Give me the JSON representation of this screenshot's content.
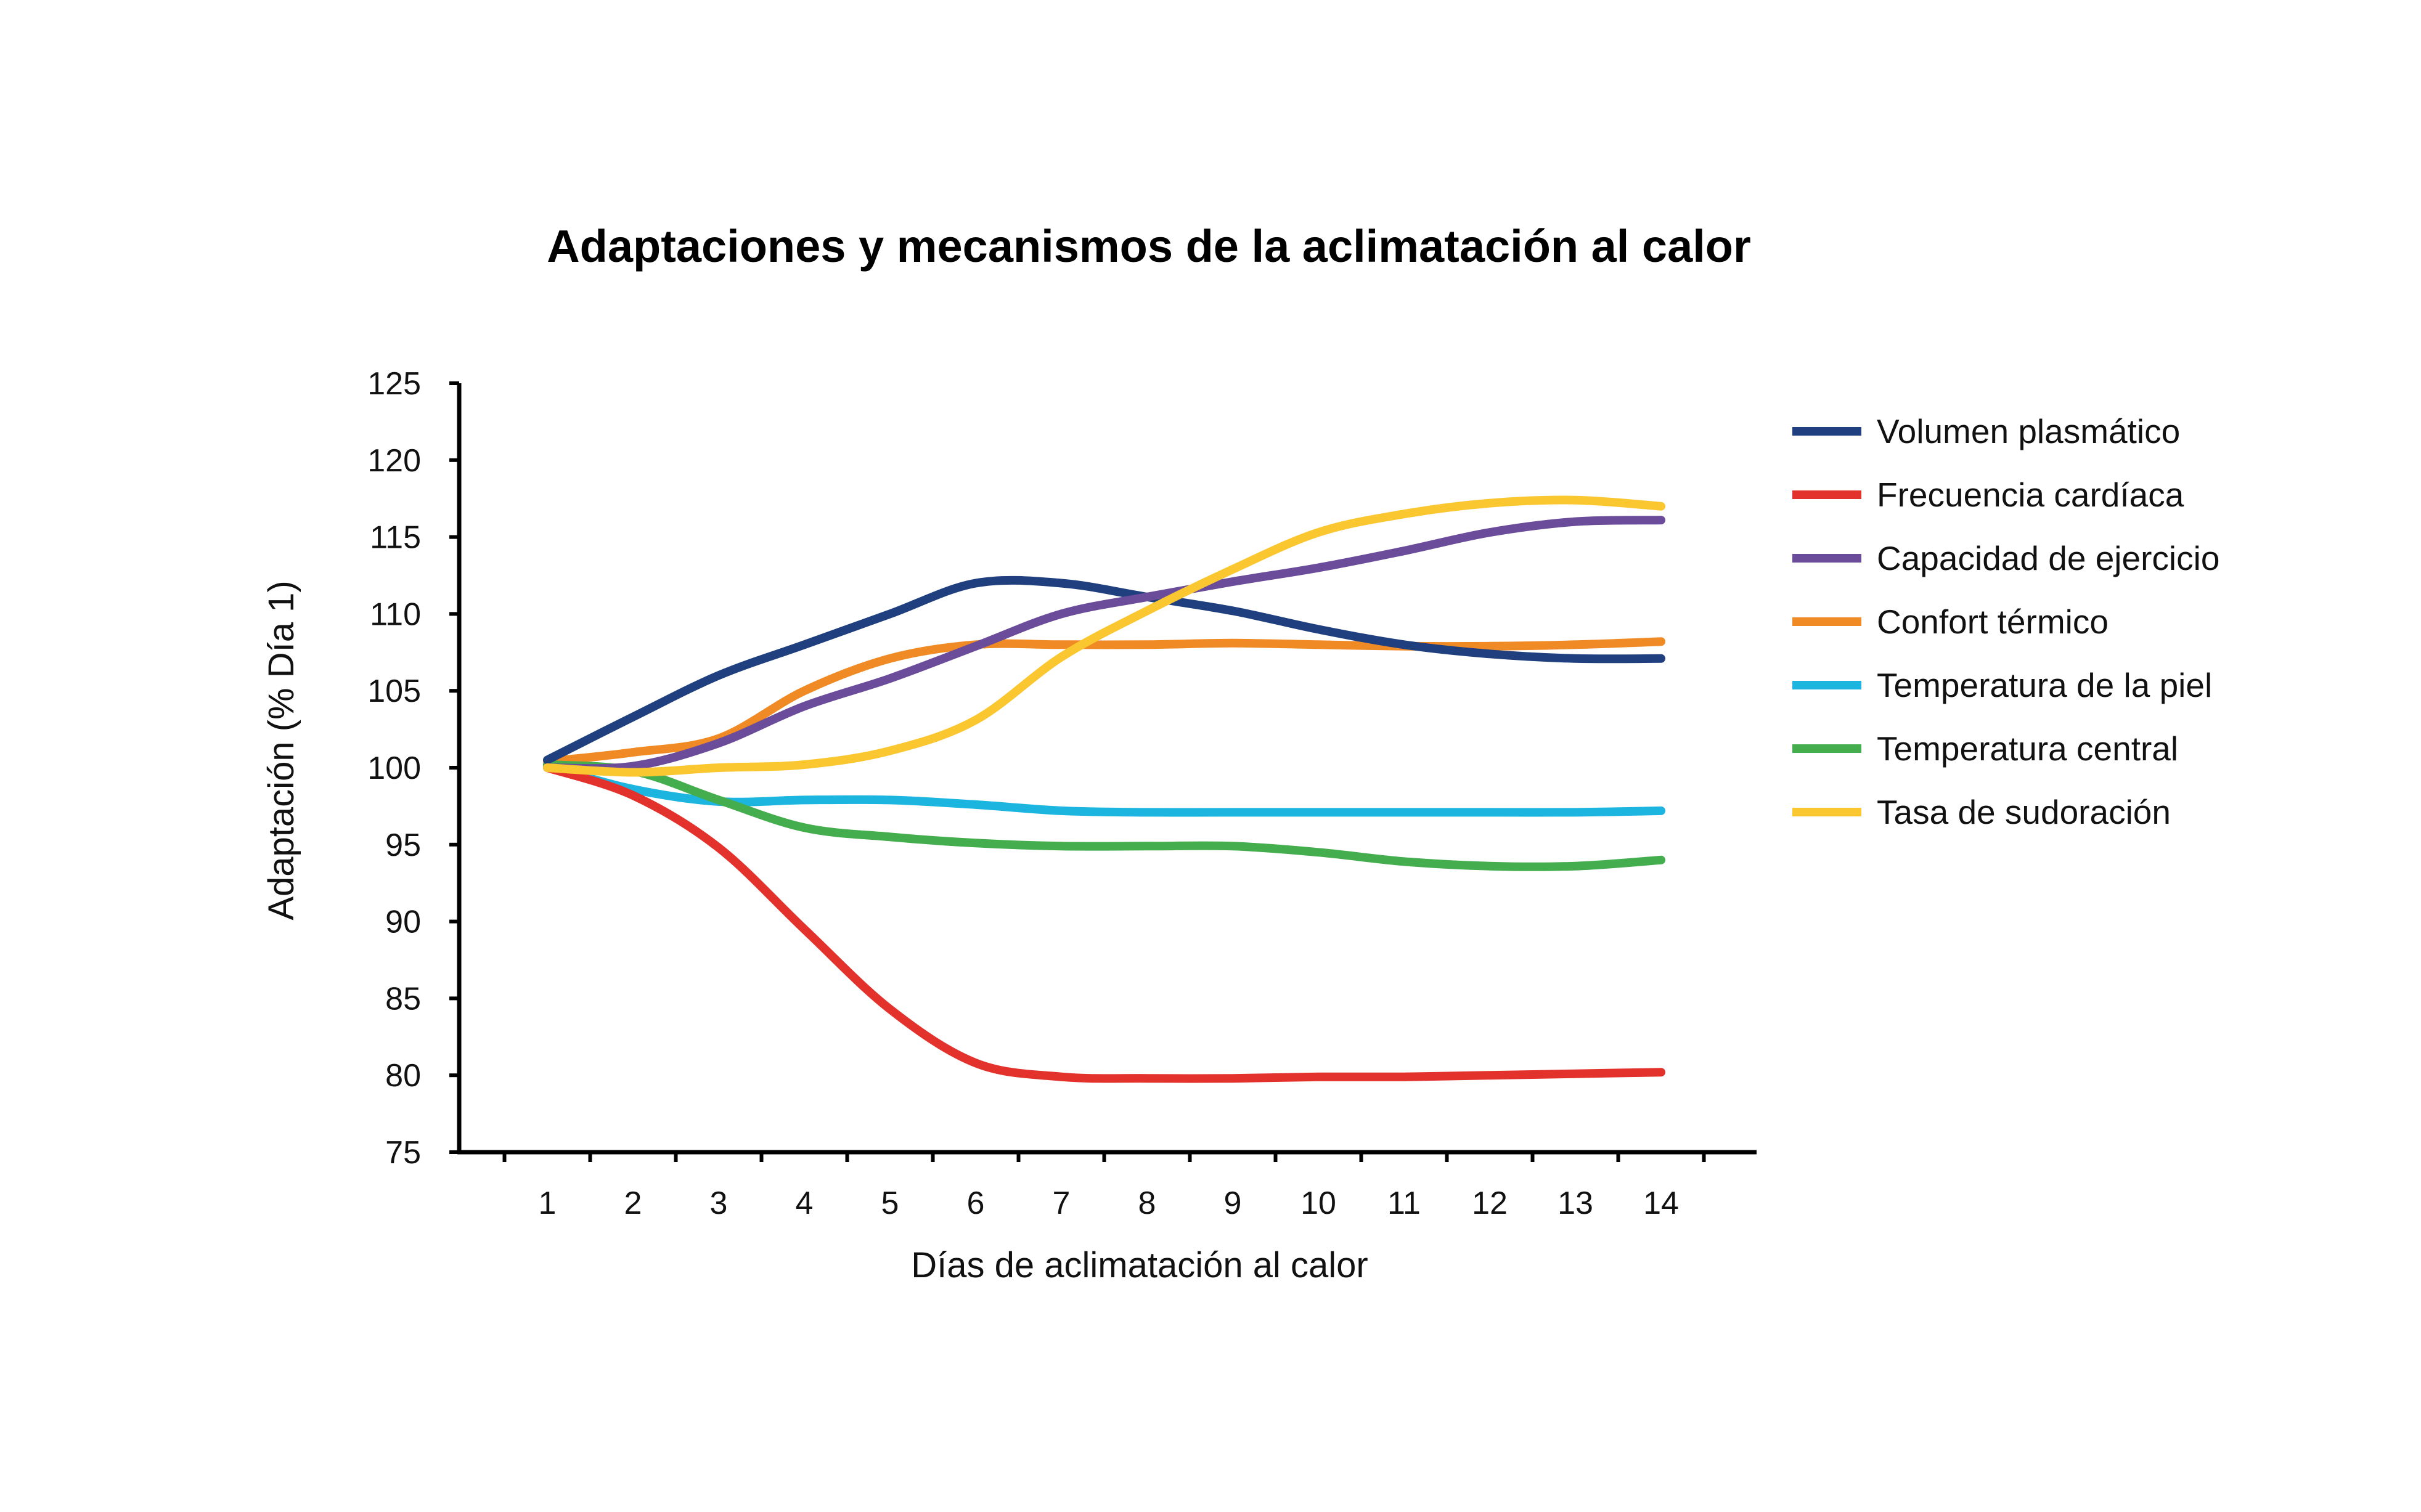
{
  "chart_data": {
    "type": "line",
    "title": "Adaptaciones y mecanismos de la aclimatación al calor",
    "xlabel": "Días de aclimatación al calor",
    "ylabel": "Adaptación (% Día 1)",
    "x": [
      1,
      2,
      3,
      4,
      5,
      6,
      7,
      8,
      9,
      10,
      11,
      12,
      13,
      14
    ],
    "xlim": [
      0,
      15
    ],
    "ylim": [
      75,
      125
    ],
    "yticks": [
      75,
      80,
      85,
      90,
      95,
      100,
      105,
      110,
      115,
      120,
      125
    ],
    "grid": false,
    "legend_position": "right",
    "series": [
      {
        "name": "Volumen plasmático",
        "color": "#1f3f7f",
        "values": [
          100.5,
          103.3,
          106.0,
          108.0,
          110.0,
          112.0,
          112.0,
          111.1,
          110.2,
          109.0,
          108.0,
          107.4,
          107.1,
          107.1
        ]
      },
      {
        "name": "Frecuencia cardíaca",
        "color": "#e3312c",
        "values": [
          100.0,
          98.2,
          94.8,
          89.5,
          84.3,
          80.8,
          79.9,
          79.8,
          79.8,
          79.9,
          79.9,
          80.0,
          80.1,
          80.2
        ]
      },
      {
        "name": "Capacidad de ejercicio",
        "color": "#6b4c9a",
        "values": [
          100.0,
          100.1,
          101.6,
          104.0,
          105.8,
          107.9,
          110.0,
          111.1,
          112.1,
          113.0,
          114.1,
          115.3,
          116.0,
          116.1
        ]
      },
      {
        "name": "Confort térmico",
        "color": "#f08a24",
        "values": [
          100.4,
          101.0,
          101.9,
          105.0,
          107.1,
          108.0,
          108.0,
          108.0,
          108.1,
          108.0,
          107.9,
          107.9,
          108.0,
          108.2
        ]
      },
      {
        "name": "Temperatura de la piel",
        "color": "#1bb5e0",
        "values": [
          100.1,
          98.6,
          97.8,
          97.9,
          97.9,
          97.6,
          97.2,
          97.1,
          97.1,
          97.1,
          97.1,
          97.1,
          97.1,
          97.2
        ]
      },
      {
        "name": "Temperatura central",
        "color": "#44ad4d",
        "values": [
          100.2,
          99.8,
          97.9,
          96.1,
          95.5,
          95.1,
          94.9,
          94.9,
          94.9,
          94.5,
          93.9,
          93.6,
          93.6,
          94.0
        ]
      },
      {
        "name": "Tasa de sudoración",
        "color": "#fbc730",
        "values": [
          100.0,
          99.7,
          100.0,
          100.2,
          101.1,
          103.1,
          107.2,
          110.2,
          112.9,
          115.3,
          116.5,
          117.2,
          117.4,
          117.0
        ]
      }
    ]
  }
}
